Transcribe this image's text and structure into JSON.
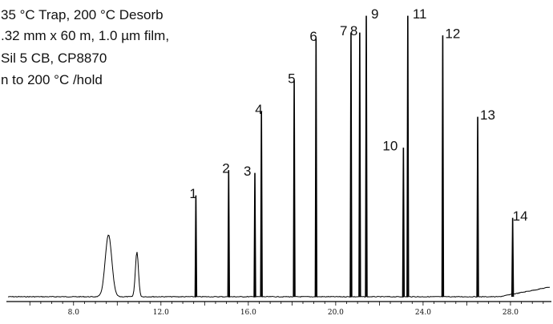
{
  "conditions": [
    "35 °C Trap, 200 °C Desorb",
    ".32 mm x 60 m, 1.0 µm film,",
    "Sil 5 CB, CP8870",
    "n to 200 °C /hold"
  ],
  "chart_data": {
    "type": "line",
    "title": "",
    "xlabel": "",
    "ylabel": "",
    "xlim": [
      5.0,
      29.8
    ],
    "ylim": [
      0,
      100
    ],
    "ticks": [
      {
        "x": 8.0,
        "label": "8.0"
      },
      {
        "x": 12.0,
        "label": "12.0"
      },
      {
        "x": 16.0,
        "label": "16.0"
      },
      {
        "x": 20.0,
        "label": "20.0"
      },
      {
        "x": 24.0,
        "label": "24.0"
      },
      {
        "x": 28.0,
        "label": "28.0"
      }
    ],
    "solvent_peaks": [
      {
        "rt": 9.6,
        "height": 22,
        "width": 0.15
      },
      {
        "rt": 10.9,
        "height": 16,
        "width": 0.07
      }
    ],
    "peaks": [
      {
        "label": "1",
        "rt": 13.6,
        "height": 36
      },
      {
        "label": "2",
        "rt": 15.1,
        "height": 45
      },
      {
        "label": "3",
        "rt": 16.3,
        "height": 44
      },
      {
        "label": "4",
        "rt": 16.6,
        "height": 66
      },
      {
        "label": "5",
        "rt": 18.1,
        "height": 77
      },
      {
        "label": "6",
        "rt": 19.1,
        "height": 92
      },
      {
        "label": "7",
        "rt": 20.7,
        "height": 94
      },
      {
        "label": "8",
        "rt": 21.1,
        "height": 94
      },
      {
        "label": "9",
        "rt": 21.4,
        "height": 100
      },
      {
        "label": "10",
        "rt": 23.1,
        "height": 53
      },
      {
        "label": "11",
        "rt": 23.3,
        "height": 100
      },
      {
        "label": "12",
        "rt": 24.9,
        "height": 93
      },
      {
        "label": "13",
        "rt": 26.5,
        "height": 64
      },
      {
        "label": "14",
        "rt": 28.1,
        "height": 28
      }
    ]
  }
}
